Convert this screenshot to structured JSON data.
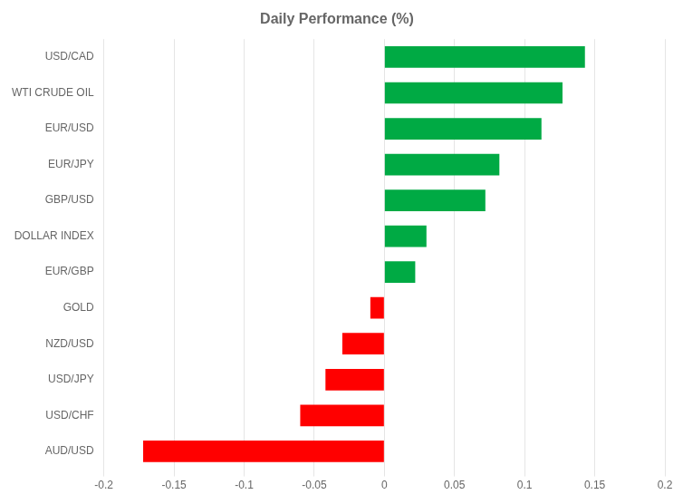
{
  "chart_data": {
    "type": "bar",
    "orientation": "horizontal",
    "title": "Daily Performance (%)",
    "categories": [
      "USD/CAD",
      "WTI CRUDE OIL",
      "EUR/USD",
      "EUR/JPY",
      "GBP/USD",
      "DOLLAR INDEX",
      "EUR/GBP",
      "GOLD",
      "NZD/USD",
      "USD/JPY",
      "USD/CHF",
      "AUD/USD"
    ],
    "values": [
      0.143,
      0.127,
      0.112,
      0.082,
      0.072,
      0.03,
      0.022,
      -0.01,
      -0.03,
      -0.042,
      -0.06,
      -0.172
    ],
    "colors": [
      "#00aa44",
      "#00aa44",
      "#00aa44",
      "#00aa44",
      "#00aa44",
      "#00aa44",
      "#00aa44",
      "#ff0000",
      "#ff0000",
      "#ff0000",
      "#ff0000",
      "#ff0000"
    ],
    "xlim": [
      -0.2,
      0.2
    ],
    "xticks": [
      -0.2,
      -0.15,
      -0.1,
      -0.05,
      0,
      0.05,
      0.1,
      0.15,
      0.2
    ],
    "grid": true
  }
}
